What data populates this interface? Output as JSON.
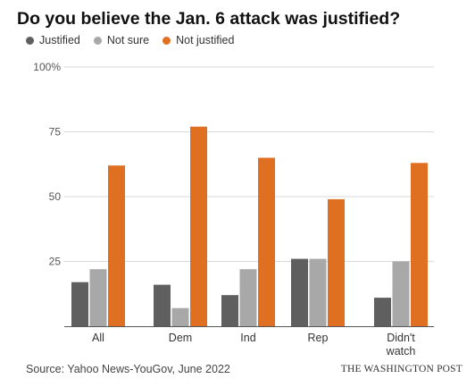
{
  "chart_data": {
    "type": "bar",
    "title": "Do you believe the Jan. 6 attack was justified?",
    "categories": [
      "All",
      "Dem",
      "Ind",
      "Rep",
      "Didn't watch"
    ],
    "category_lines": [
      [
        "All"
      ],
      [
        "Dem"
      ],
      [
        "Ind"
      ],
      [
        "Rep"
      ],
      [
        "Didn't",
        "watch"
      ]
    ],
    "series": [
      {
        "name": "Justified",
        "color": "#5f5f5f",
        "values": [
          17,
          16,
          12,
          26,
          11
        ]
      },
      {
        "name": "Not sure",
        "color": "#a8a8a8",
        "values": [
          22,
          7,
          22,
          26,
          25
        ]
      },
      {
        "name": "Not justified",
        "color": "#e07021",
        "values": [
          62,
          77,
          65,
          49,
          63
        ]
      }
    ],
    "yticks": [
      0,
      25,
      50,
      75,
      100
    ],
    "ytick_labels": [
      "",
      "25",
      "50",
      "75",
      "100%"
    ],
    "ylim": [
      0,
      100
    ],
    "grid": true,
    "legend_position": "top-left",
    "xlabel": "",
    "ylabel": ""
  },
  "footer": {
    "source": "Source: Yahoo News-YouGov, June 2022",
    "credit": "THE WASHINGTON POST"
  }
}
